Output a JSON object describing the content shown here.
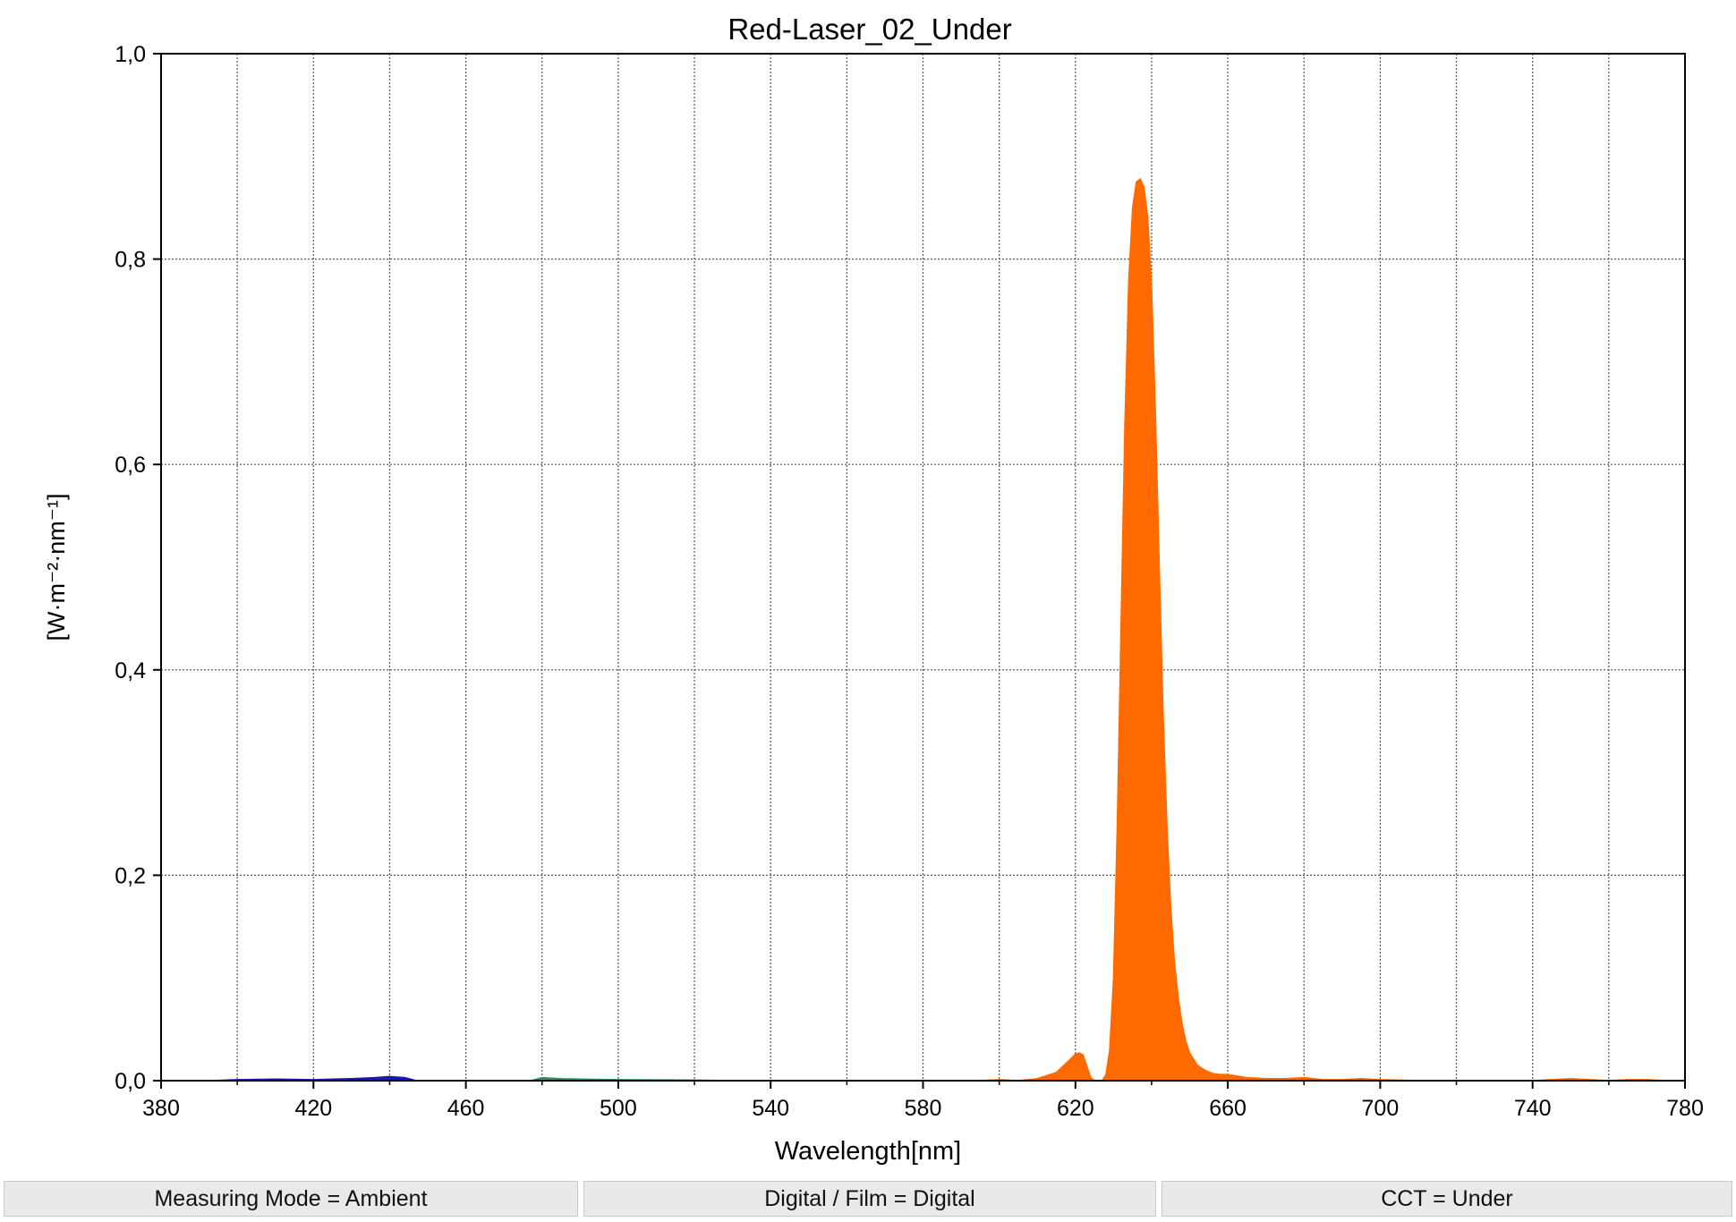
{
  "chart_data": {
    "type": "area",
    "title": "Red-Laser_02_Under",
    "xlabel": "Wavelength[nm]",
    "ylabel": "[W·m⁻²·nm⁻¹]",
    "xlim": [
      380,
      780
    ],
    "ylim": [
      0,
      1.0
    ],
    "x_ticks": [
      380,
      420,
      460,
      500,
      540,
      580,
      620,
      660,
      700,
      740,
      780
    ],
    "x_tick_labels": [
      "380",
      "420",
      "460",
      "500",
      "540",
      "580",
      "620",
      "660",
      "700",
      "740",
      "780"
    ],
    "y_ticks": [
      0,
      0.2,
      0.4,
      0.6,
      0.8,
      1.0
    ],
    "y_tick_labels": [
      "0,0",
      "0,2",
      "0,4",
      "0,6",
      "0,8",
      "1,0"
    ],
    "grid": true,
    "series": [
      {
        "color": "#1a1aa8",
        "x": [
          393,
          400,
          410,
          420,
          430,
          436,
          440,
          444,
          447
        ],
        "y": [
          0,
          0.001,
          0.0015,
          0.001,
          0.002,
          0.003,
          0.004,
          0.003,
          0
        ]
      },
      {
        "color": "#2f8f5a",
        "x": [
          477,
          480,
          485,
          490,
          500,
          510,
          520,
          530
        ],
        "y": [
          0,
          0.003,
          0.002,
          0.0015,
          0.001,
          0.0008,
          0.0005,
          0
        ]
      },
      {
        "color": "#ff6a00",
        "x": [
          595,
          600,
          605,
          610,
          615,
          617,
          619,
          620,
          621,
          622,
          623,
          624,
          625,
          627,
          628,
          629,
          630,
          631,
          632,
          633,
          634,
          635,
          636,
          637,
          638,
          639,
          640,
          641,
          642,
          643,
          644,
          645,
          646,
          647,
          648,
          649,
          650,
          652,
          654,
          656,
          658,
          660,
          665,
          670,
          675,
          680,
          685,
          690,
          695,
          700,
          710,
          720,
          730,
          740,
          745,
          750,
          755,
          760,
          765,
          770,
          775
        ],
        "y": [
          0,
          0.001,
          0,
          0.002,
          0.008,
          0.015,
          0.022,
          0.026,
          0.027,
          0.025,
          0.014,
          0.003,
          0,
          0,
          0.006,
          0.03,
          0.1,
          0.25,
          0.45,
          0.64,
          0.78,
          0.85,
          0.875,
          0.878,
          0.87,
          0.84,
          0.77,
          0.65,
          0.5,
          0.36,
          0.25,
          0.17,
          0.115,
          0.08,
          0.055,
          0.038,
          0.027,
          0.015,
          0.01,
          0.007,
          0.006,
          0.006,
          0.003,
          0.002,
          0.002,
          0.003,
          0.001,
          0.001,
          0.002,
          0.001,
          0,
          0,
          0,
          0,
          0.001,
          0.002,
          0.001,
          0,
          0.001,
          0.001,
          0
        ]
      }
    ]
  },
  "status_bar": [
    "Measuring Mode = Ambient",
    "Digital / Film = Digital",
    "CCT = Under"
  ]
}
